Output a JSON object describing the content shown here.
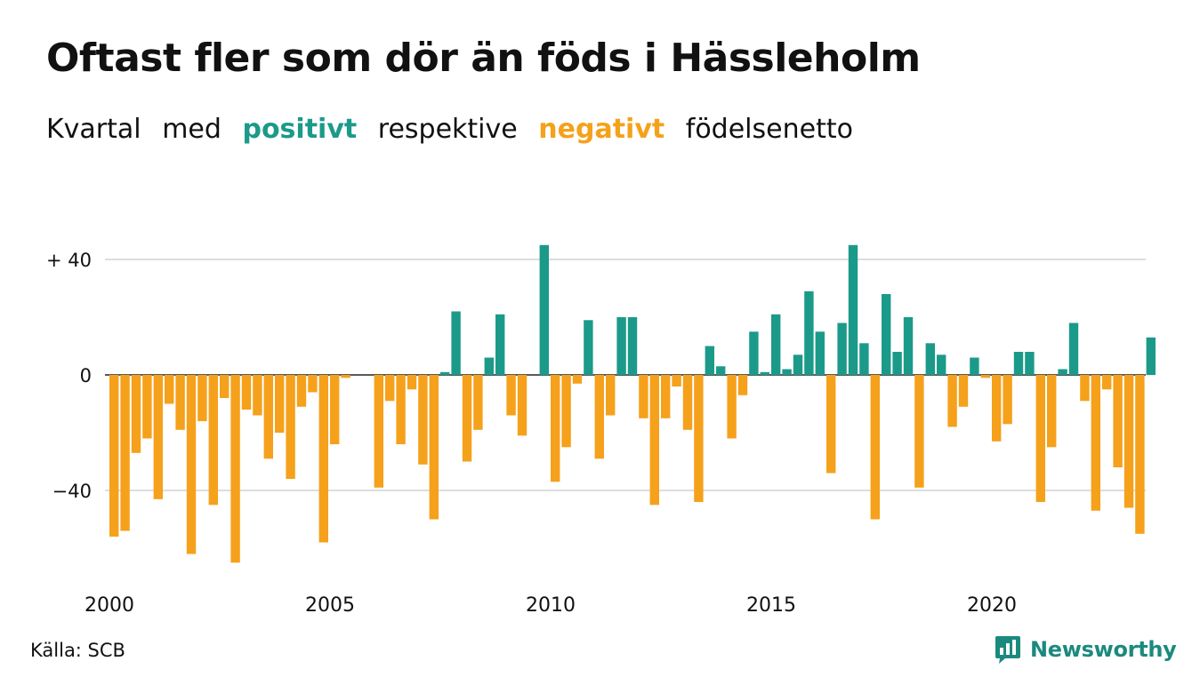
{
  "header": {
    "title": "Oftast fler som dör än föds i Hässleholm",
    "subtitle": {
      "w1": "Kvartal",
      "w2": "med",
      "positive_word": "positivt",
      "w3": "respektive",
      "negative_word": "negativt",
      "w4": "födelsenetto"
    }
  },
  "footer": {
    "source": "Källa: SCB",
    "logo_text": "Newsworthy",
    "logo_icon": "newsworthy-logo-icon"
  },
  "colors": {
    "positive": "#1b9a8a",
    "negative": "#f5a11b",
    "grid": "#dddddd",
    "text": "#111111"
  },
  "chart_data": {
    "type": "bar",
    "x_start": "2000 Q1",
    "x_tick_labels": [
      {
        "label": "2000",
        "year": 2000
      },
      {
        "label": "2005",
        "year": 2005
      },
      {
        "label": "2010",
        "year": 2010
      },
      {
        "label": "2015",
        "year": 2015
      },
      {
        "label": "2020",
        "year": 2020
      }
    ],
    "y_ticks": [
      {
        "value": 40,
        "label": "+ 40"
      },
      {
        "value": 0,
        "label": "0"
      },
      {
        "value": -40,
        "label": "−40"
      }
    ],
    "ylim": [
      -66,
      46
    ],
    "grid": true,
    "values": [
      -56,
      -54,
      -27,
      -22,
      -43,
      -10,
      -19,
      -62,
      -16,
      -45,
      -8,
      -65,
      -12,
      -14,
      -29,
      -20,
      -36,
      -11,
      -6,
      -58,
      -24,
      -1,
      0,
      0,
      -39,
      -9,
      -24,
      -5,
      -31,
      -50,
      1,
      22,
      -30,
      -19,
      6,
      21,
      -14,
      -21,
      0,
      45,
      -37,
      -25,
      -3,
      19,
      -29,
      -14,
      20,
      20,
      -15,
      -45,
      -15,
      -4,
      -19,
      -44,
      10,
      3,
      -22,
      -7,
      15,
      1,
      21,
      2,
      7,
      29,
      15,
      -34,
      18,
      45,
      11,
      -50,
      28,
      8,
      20,
      -39,
      11,
      7,
      -18,
      -11,
      6,
      -1,
      -23,
      -17,
      8,
      8,
      -44,
      -25,
      2,
      18,
      -9,
      -47,
      -5,
      -32,
      -46,
      -55,
      13
    ]
  }
}
